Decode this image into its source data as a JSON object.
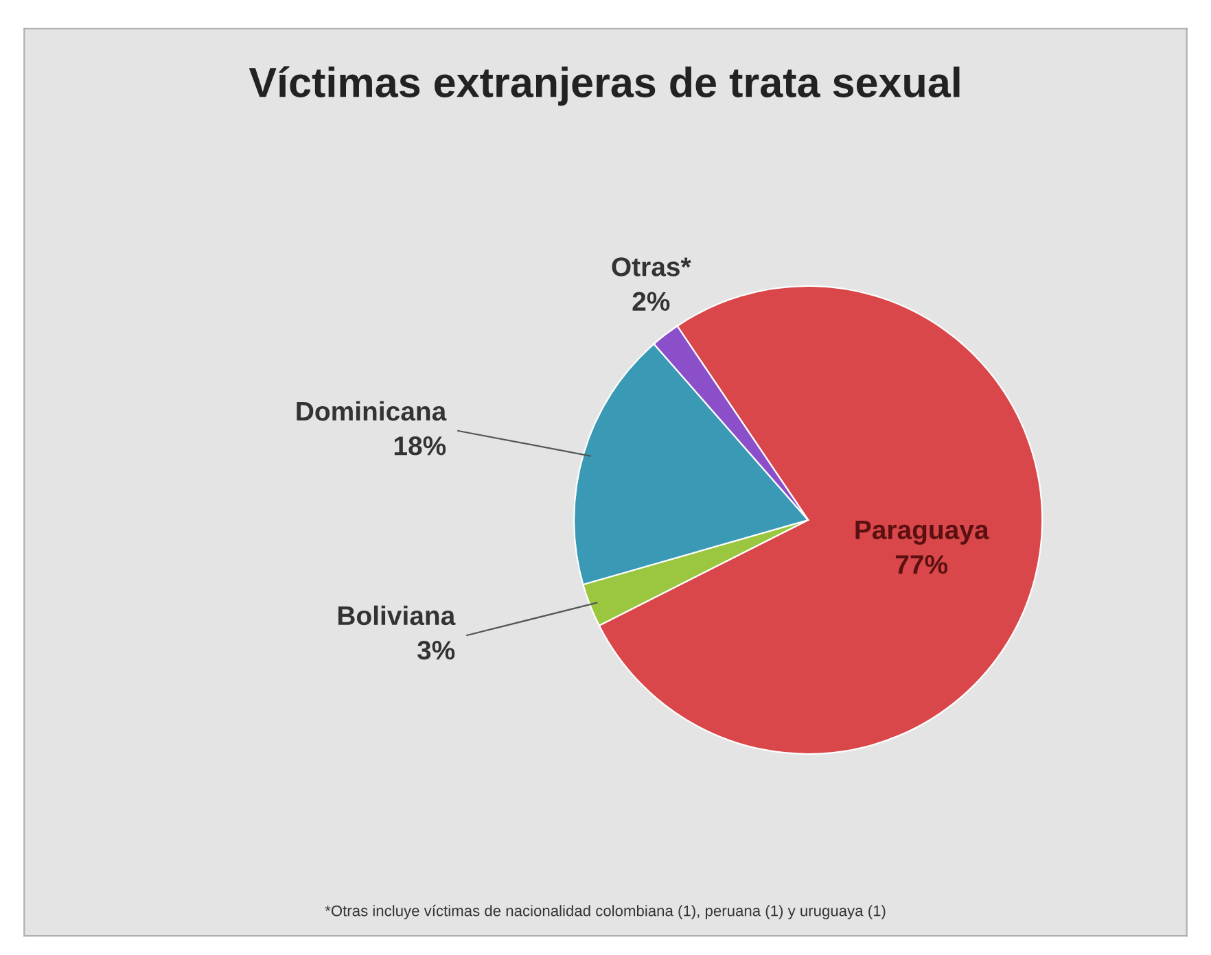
{
  "chart_data": {
    "type": "pie",
    "title": "Víctimas extranjeras de trata sexual",
    "categories": [
      "Paraguaya",
      "Boliviana",
      "Dominicana",
      "Otras*"
    ],
    "values": [
      77,
      3,
      18,
      2
    ],
    "value_labels": [
      "77%",
      "3%",
      "18%",
      "2%"
    ],
    "colors": [
      "#d9474a",
      "#9bc640",
      "#3a9ab5",
      "#8b4fc9"
    ],
    "annotations": [
      "*Otras incluye víctimas de nacionalidad colombiana (1), peruana (1) y uruguaya (1)"
    ]
  }
}
